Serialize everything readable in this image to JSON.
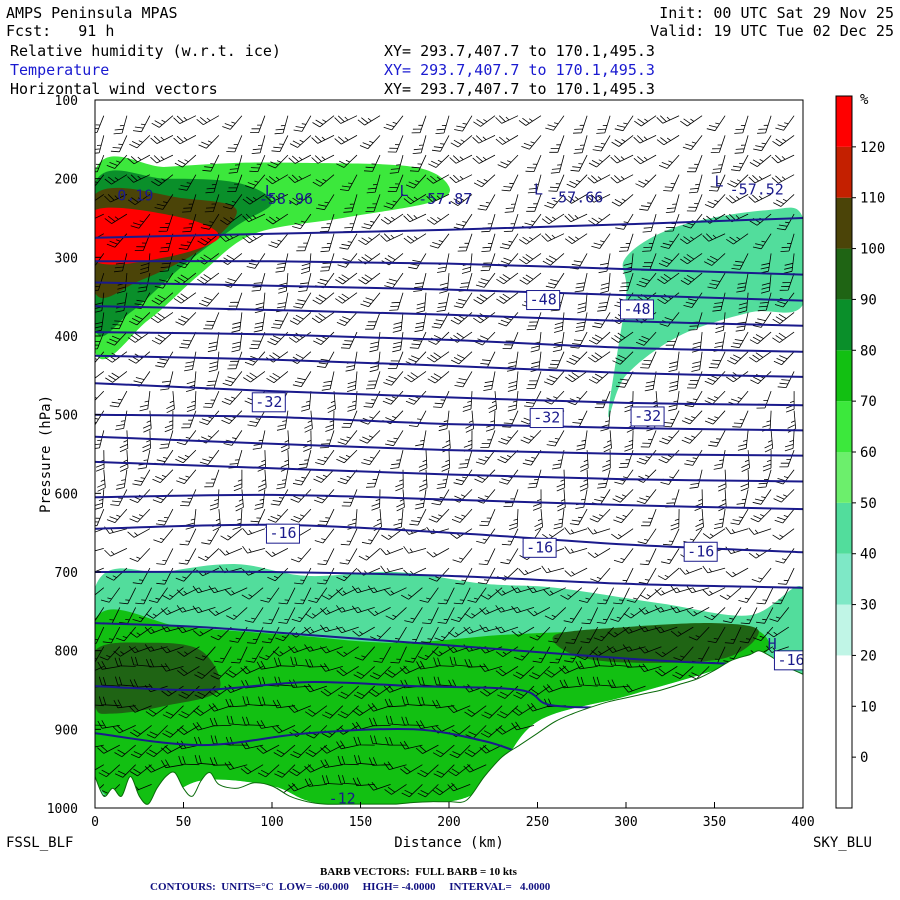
{
  "header": {
    "model": "AMPS Peninsula MPAS",
    "fcst": "Fcst:   91 h",
    "init": "Init: 00 UTC Sat 29 Nov 25",
    "valid": "Valid: 19 UTC Tue 02 Dec 25",
    "fields": [
      {
        "label": "Relative humidity (w.r.t. ice)",
        "xy": "XY= 293.7,407.7 to 170.1,495.3",
        "color": "#000000"
      },
      {
        "label": "Temperature",
        "xy": "XY= 293.7,407.7 to 170.1,495.3",
        "color": "#1a1ad0"
      },
      {
        "label": "Horizontal wind vectors",
        "xy": "XY= 293.7,407.7 to 170.1,495.3",
        "color": "#000000"
      }
    ]
  },
  "footer": {
    "left_station": "FSSL_BLF",
    "right_station": "SKY_BLU",
    "barb_text": "BARB VECTORS:  FULL BARB = 10 kts",
    "contour_text": "CONTOURS:  UNITS=°C  LOW= -60.000     HIGH= -4.0000     INTERVAL=   4.0000"
  },
  "chart_data": {
    "type": "cross-section",
    "xlabel": "Distance (km)",
    "ylabel": "Pressure (hPa)",
    "xlim": [
      0,
      400
    ],
    "ylim": [
      1000,
      100
    ],
    "xticks": [
      0,
      50,
      100,
      150,
      200,
      250,
      300,
      350,
      400
    ],
    "yticks": [
      100,
      200,
      300,
      400,
      500,
      600,
      700,
      800,
      900,
      1000
    ],
    "terrain": {
      "x": [
        0,
        5,
        10,
        15,
        20,
        25,
        30,
        35,
        40,
        45,
        50,
        55,
        60,
        65,
        70,
        80,
        90,
        100,
        110,
        120,
        130,
        140,
        150,
        160,
        170,
        180,
        190,
        200,
        210,
        220,
        230,
        240,
        250,
        260,
        270,
        280,
        290,
        300,
        310,
        320,
        330,
        340,
        350,
        360,
        370,
        375,
        380,
        385,
        390,
        395,
        400
      ],
      "p": [
        960,
        985,
        975,
        985,
        960,
        985,
        995,
        975,
        960,
        955,
        975,
        985,
        965,
        955,
        970,
        975,
        968,
        972,
        985,
        992,
        995,
        995,
        995,
        995,
        995,
        993,
        992,
        992,
        990,
        960,
        935,
        920,
        905,
        890,
        880,
        872,
        865,
        860,
        855,
        850,
        843,
        836,
        825,
        812,
        805,
        800,
        805,
        812,
        820,
        825,
        830
      ]
    },
    "rh_colorbar": {
      "unit": "%",
      "levels": [
        0,
        10,
        20,
        30,
        40,
        50,
        60,
        70,
        80,
        90,
        100,
        110,
        120
      ],
      "colors": [
        "#ffffff",
        "#ffffff",
        "#ffffff",
        "#c0f5e6",
        "#7ee8c6",
        "#52dd9c",
        "#6cef6c",
        "#3ce83c",
        "#12c012",
        "#0a8f2a",
        "#1f6414",
        "#4b4408",
        "#c42000",
        "#ff0000"
      ]
    },
    "rh_regions": [
      {
        "level": 60,
        "points": [
          [
            0,
            190
          ],
          [
            40,
            185
          ],
          [
            80,
            180
          ],
          [
            120,
            180
          ],
          [
            180,
            185
          ],
          [
            200,
            210
          ],
          [
            190,
            230
          ],
          [
            140,
            250
          ],
          [
            90,
            270
          ],
          [
            60,
            320
          ],
          [
            30,
            380
          ],
          [
            0,
            420
          ]
        ]
      },
      {
        "level": 80,
        "points": [
          [
            0,
            205
          ],
          [
            40,
            200
          ],
          [
            80,
            205
          ],
          [
            100,
            230
          ],
          [
            80,
            260
          ],
          [
            50,
            310
          ],
          [
            20,
            370
          ],
          [
            0,
            390
          ]
        ]
      },
      {
        "level": 100,
        "points": [
          [
            0,
            220
          ],
          [
            50,
            225
          ],
          [
            80,
            240
          ],
          [
            60,
            290
          ],
          [
            25,
            330
          ],
          [
            0,
            345
          ]
        ]
      },
      {
        "level": 120,
        "points": [
          [
            0,
            240
          ],
          [
            50,
            250
          ],
          [
            70,
            275
          ],
          [
            40,
            300
          ],
          [
            0,
            305
          ]
        ]
      },
      {
        "level": 40,
        "points": [
          [
            300,
            300
          ],
          [
            330,
            260
          ],
          [
            380,
            240
          ],
          [
            400,
            250
          ],
          [
            400,
            360
          ],
          [
            370,
            370
          ],
          [
            330,
            400
          ],
          [
            300,
            450
          ],
          [
            290,
            500
          ],
          [
            300,
            350
          ]
        ]
      },
      {
        "level": 40,
        "points": [
          [
            0,
            720
          ],
          [
            40,
            700
          ],
          [
            80,
            690
          ],
          [
            120,
            705
          ],
          [
            170,
            700
          ],
          [
            220,
            715
          ],
          [
            260,
            720
          ],
          [
            320,
            740
          ],
          [
            370,
            755
          ],
          [
            400,
            720
          ],
          [
            400,
            830
          ],
          [
            385,
            810
          ],
          [
            370,
            805
          ],
          [
            350,
            825
          ],
          [
            300,
            858
          ],
          [
            250,
            890
          ],
          [
            225,
            960
          ],
          [
            200,
            992
          ],
          [
            130,
            995
          ],
          [
            100,
            972
          ],
          [
            60,
            965
          ],
          [
            30,
            995
          ],
          [
            0,
            960
          ]
        ]
      },
      {
        "level": 70,
        "points": [
          [
            0,
            760
          ],
          [
            50,
            770
          ],
          [
            110,
            780
          ],
          [
            170,
            790
          ],
          [
            230,
            780
          ],
          [
            280,
            775
          ],
          [
            330,
            770
          ],
          [
            370,
            770
          ],
          [
            380,
            800
          ],
          [
            350,
            825
          ],
          [
            300,
            858
          ],
          [
            250,
            890
          ],
          [
            225,
            960
          ],
          [
            200,
            992
          ],
          [
            130,
            995
          ],
          [
            100,
            972
          ],
          [
            60,
            965
          ],
          [
            30,
            995
          ],
          [
            0,
            960
          ]
        ]
      },
      {
        "level": 90,
        "points": [
          [
            260,
            780
          ],
          [
            300,
            770
          ],
          [
            350,
            765
          ],
          [
            375,
            775
          ],
          [
            355,
            810
          ],
          [
            300,
            815
          ],
          [
            270,
            805
          ]
        ]
      },
      {
        "level": 90,
        "points": [
          [
            0,
            800
          ],
          [
            30,
            790
          ],
          [
            60,
            800
          ],
          [
            70,
            850
          ],
          [
            40,
            870
          ],
          [
            10,
            880
          ],
          [
            0,
            870
          ]
        ]
      }
    ],
    "temp_contours": {
      "color": "#1a1a8c",
      "lines": [
        {
          "x": [
            0,
            100,
            200,
            300,
            400
          ],
          "p": [
            275,
            270,
            265,
            258,
            250
          ]
        },
        {
          "x": [
            0,
            100,
            200,
            300,
            400
          ],
          "p": [
            305,
            305,
            308,
            315,
            322
          ]
        },
        {
          "x": [
            0,
            100,
            200,
            300,
            400
          ],
          "p": [
            332,
            336,
            341,
            348,
            355
          ]
        },
        {
          "x": [
            0,
            100,
            200,
            300,
            400
          ],
          "p": [
            362,
            367,
            373,
            381,
            387
          ]
        },
        {
          "x": [
            0,
            100,
            200,
            300,
            400
          ],
          "p": [
            395,
            398,
            405,
            415,
            420
          ]
        },
        {
          "x": [
            0,
            100,
            200,
            300,
            400
          ],
          "p": [
            425,
            430,
            438,
            447,
            452
          ]
        },
        {
          "x": [
            0,
            100,
            200,
            300,
            400
          ],
          "p": [
            460,
            470,
            478,
            485,
            488
          ]
        },
        {
          "x": [
            0,
            100,
            200,
            300,
            400
          ],
          "p": [
            500,
            503,
            512,
            517,
            520
          ]
        },
        {
          "x": [
            0,
            100,
            200,
            300,
            400
          ],
          "p": [
            528,
            537,
            545,
            550,
            552
          ]
        },
        {
          "x": [
            0,
            100,
            200,
            300,
            400
          ],
          "p": [
            560,
            568,
            576,
            582,
            585
          ]
        },
        {
          "x": [
            0,
            100,
            200,
            300,
            400
          ],
          "p": [
            605,
            602,
            608,
            615,
            620
          ]
        },
        {
          "x": [
            0,
            100,
            200,
            300,
            400
          ],
          "p": [
            645,
            640,
            650,
            665,
            675
          ]
        },
        {
          "x": [
            0,
            100,
            200,
            300,
            400
          ],
          "p": [
            700,
            700,
            705,
            715,
            720
          ]
        },
        {
          "x": [
            0,
            60,
            120,
            180,
            240,
            300,
            340,
            400
          ],
          "p": [
            765,
            770,
            780,
            790,
            800,
            810,
            815,
            820
          ]
        },
        {
          "x": [
            0,
            60,
            120,
            180,
            240,
            260,
            320,
            370,
            400
          ],
          "p": [
            845,
            850,
            840,
            845,
            850,
            870,
            870,
            855,
            860
          ]
        },
        {
          "x": [
            0,
            60,
            120,
            180,
            220,
            240
          ],
          "p": [
            905,
            920,
            905,
            900,
            915,
            930
          ]
        }
      ]
    },
    "temp_labels": [
      {
        "text": "-58.96",
        "x": 92,
        "p": 232
      },
      {
        "text": "-57.87",
        "x": 182,
        "p": 232
      },
      {
        "text": "-57.66",
        "x": 256,
        "p": 230
      },
      {
        "text": "-57.52",
        "x": 358,
        "p": 220
      },
      {
        "text": "0.19",
        "x": 12,
        "p": 228
      },
      {
        "text": "-48",
        "x": 245,
        "p": 360
      },
      {
        "text": "-48",
        "x": 298,
        "p": 372
      },
      {
        "text": "-32",
        "x": 90,
        "p": 490
      },
      {
        "text": "-32",
        "x": 247,
        "p": 510
      },
      {
        "text": "-32",
        "x": 304,
        "p": 508
      },
      {
        "text": "-16",
        "x": 98,
        "p": 657
      },
      {
        "text": "-16",
        "x": 243,
        "p": 675
      },
      {
        "text": "-16",
        "x": 334,
        "p": 680
      },
      {
        "text": "-16",
        "x": 385,
        "p": 818
      }
    ],
    "extrema_labels": [
      {
        "text": "L",
        "x": 96,
        "p": 222
      },
      {
        "text": "L",
        "x": 172,
        "p": 222
      },
      {
        "text": "L",
        "x": 248,
        "p": 220
      },
      {
        "text": "L",
        "x": 350,
        "p": 210
      },
      {
        "text": "H",
        "x": 380,
        "p": 798
      },
      {
        "text": "-12",
        "x": 132,
        "p": 994
      }
    ],
    "wind_barbs": {
      "full_barb_kts": 10,
      "direction_deg": [
        220,
        210,
        200,
        230,
        250
      ],
      "speed_kts": [
        25,
        30,
        25,
        15,
        20
      ]
    }
  }
}
